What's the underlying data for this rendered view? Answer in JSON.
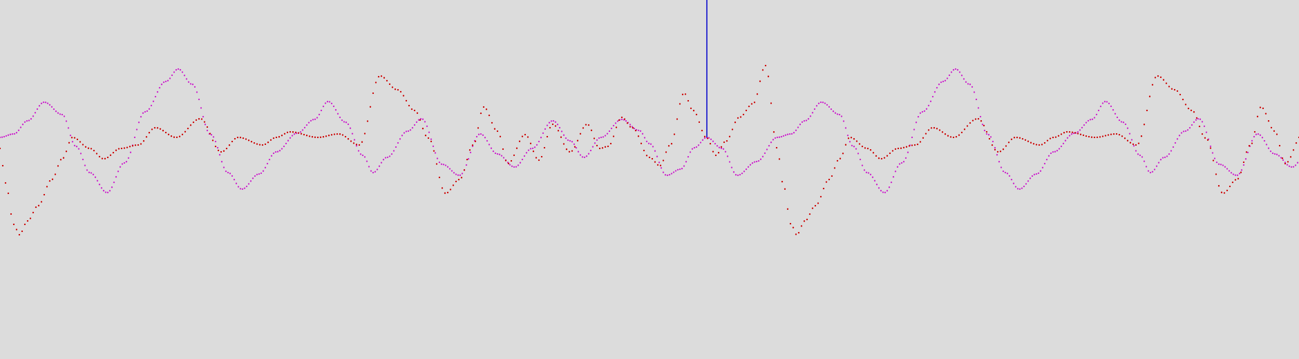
{
  "chart_data": {
    "type": "scatter",
    "xlim": [
      0,
      1880
    ],
    "ylim": [
      -240,
      280
    ],
    "grid": false,
    "legend": "none",
    "background_color": "#dcdcdc",
    "cursor": {
      "x": 1023,
      "y_top": 280,
      "y_bottom": 81,
      "color": "#0000cc"
    },
    "series": [
      {
        "color": "#cc22cc",
        "period": 1125,
        "step": 3,
        "keypoints": [
          [
            0,
            81
          ],
          [
            20,
            86
          ],
          [
            40,
            105
          ],
          [
            64,
            132
          ],
          [
            90,
            114
          ],
          [
            110,
            68
          ],
          [
            130,
            30
          ],
          [
            155,
            1
          ],
          [
            180,
            44
          ],
          [
            210,
            118
          ],
          [
            240,
            162
          ],
          [
            258,
            180
          ],
          [
            278,
            158
          ],
          [
            305,
            85
          ],
          [
            330,
            30
          ],
          [
            350,
            6
          ],
          [
            375,
            28
          ],
          [
            400,
            60
          ],
          [
            430,
            87
          ],
          [
            455,
            107
          ],
          [
            475,
            133
          ],
          [
            500,
            103
          ],
          [
            525,
            55
          ],
          [
            540,
            30
          ],
          [
            560,
            52
          ],
          [
            590,
            90
          ],
          [
            610,
            108
          ],
          [
            640,
            42
          ],
          [
            665,
            26
          ],
          [
            695,
            86
          ],
          [
            720,
            57
          ],
          [
            745,
            38
          ],
          [
            770,
            65
          ],
          [
            800,
            105
          ],
          [
            825,
            76
          ],
          [
            845,
            52
          ],
          [
            870,
            81
          ],
          [
            900,
            107
          ],
          [
            925,
            91
          ],
          [
            940,
            72
          ],
          [
            965,
            26
          ],
          [
            985,
            35
          ],
          [
            1005,
            66
          ],
          [
            1023,
            81
          ],
          [
            1045,
            65
          ],
          [
            1067,
            26
          ],
          [
            1095,
            46
          ],
          [
            1125,
            81
          ]
        ]
      },
      {
        "color": "#cc0000",
        "period": 1125,
        "step": 4,
        "keypoints": [
          [
            0,
            65
          ],
          [
            8,
            15
          ],
          [
            20,
            -45
          ],
          [
            28,
            -60
          ],
          [
            40,
            -40
          ],
          [
            55,
            -18
          ],
          [
            75,
            20
          ],
          [
            90,
            50
          ],
          [
            105,
            81
          ],
          [
            130,
            65
          ],
          [
            150,
            50
          ],
          [
            175,
            65
          ],
          [
            200,
            70
          ],
          [
            225,
            95
          ],
          [
            255,
            81
          ],
          [
            290,
            108
          ],
          [
            320,
            60
          ],
          [
            345,
            81
          ],
          [
            380,
            70
          ],
          [
            400,
            81
          ],
          [
            420,
            89
          ],
          [
            460,
            81
          ],
          [
            490,
            86
          ],
          [
            520,
            70
          ],
          [
            550,
            170
          ],
          [
            575,
            150
          ],
          [
            600,
            120
          ],
          [
            620,
            80
          ],
          [
            645,
            0
          ],
          [
            665,
            20
          ],
          [
            685,
            70
          ],
          [
            700,
            125
          ],
          [
            720,
            90
          ],
          [
            735,
            43
          ],
          [
            760,
            85
          ],
          [
            780,
            48
          ],
          [
            800,
            100
          ],
          [
            825,
            60
          ],
          [
            850,
            100
          ],
          [
            868,
            65
          ],
          [
            880,
            68
          ],
          [
            900,
            110
          ],
          [
            915,
            95
          ],
          [
            940,
            52
          ],
          [
            955,
            40
          ],
          [
            970,
            70
          ],
          [
            990,
            145
          ],
          [
            1003,
            120
          ],
          [
            1023,
            80
          ],
          [
            1036,
            55
          ],
          [
            1050,
            75
          ],
          [
            1070,
            110
          ],
          [
            1090,
            130
          ],
          [
            1108,
            185
          ],
          [
            1125,
            65
          ]
        ]
      }
    ]
  }
}
